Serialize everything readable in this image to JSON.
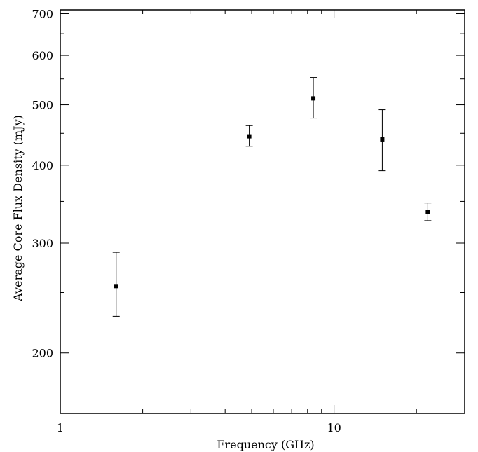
{
  "chart_data": {
    "type": "scatter",
    "title": "",
    "xlabel": "Frequency (GHz)",
    "ylabel": "Average Core Flux Density (mJy)",
    "xscale": "log",
    "yscale": "log",
    "xlim": [
      1,
      30
    ],
    "ylim": [
      160,
      710
    ],
    "x_major_ticks": [
      1,
      10
    ],
    "x_major_tick_labels": [
      "1",
      "10"
    ],
    "x_minor_ticks": [
      2,
      3,
      4,
      5,
      6,
      7,
      8,
      9,
      20,
      30
    ],
    "y_major_ticks": [
      200,
      300,
      400,
      500,
      600,
      700
    ],
    "y_major_tick_labels": [
      "200",
      "300",
      "400",
      "500",
      "600",
      "700"
    ],
    "y_minor_ticks": [
      250,
      350,
      450,
      550,
      650
    ],
    "grid": false,
    "legend": "none",
    "marker": "square",
    "series": [
      {
        "x": [
          1.6,
          4.9,
          8.4,
          15.0,
          22.0
        ],
        "y": [
          256,
          445,
          512,
          440,
          337
        ],
        "yerr_low": [
          27,
          16,
          36,
          48,
          11
        ],
        "yerr_high": [
          34,
          18,
          41,
          51,
          11
        ]
      }
    ]
  }
}
